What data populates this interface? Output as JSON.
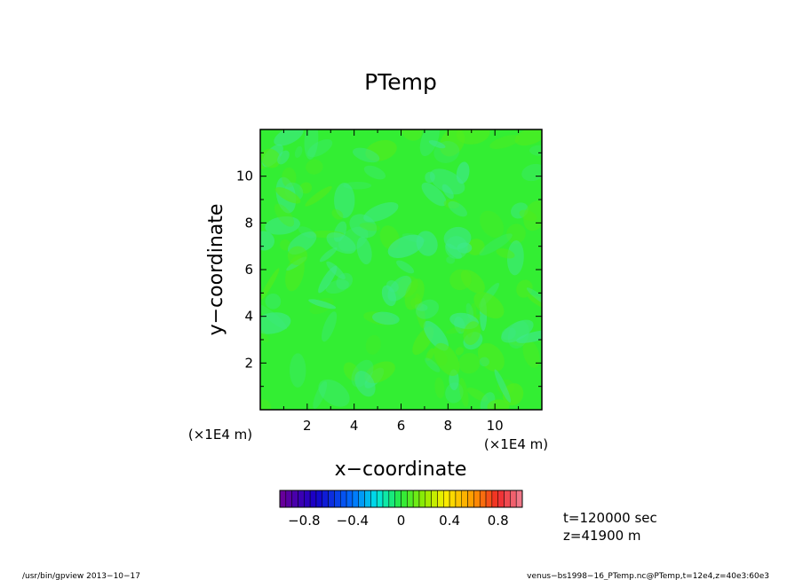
{
  "chart_data": {
    "type": "heatmap",
    "title": "PTemp",
    "xlabel": "x−coordinate",
    "ylabel": "y−coordinate",
    "x_unit": "(×1E4 m)",
    "y_unit": "(×1E4 m)",
    "xlim": [
      0,
      12
    ],
    "ylim": [
      0,
      12
    ],
    "x_ticks": [
      2,
      4,
      6,
      8,
      10
    ],
    "y_ticks": [
      2,
      4,
      6,
      8,
      10
    ],
    "x_tick_labels": [
      "2",
      "4",
      "6",
      "8",
      "10"
    ],
    "y_tick_labels": [
      "2",
      "4",
      "6",
      "8",
      "10"
    ],
    "field_value_range": [
      -0.2,
      0.1
    ],
    "colorbar": {
      "range": [
        -1.0,
        1.0
      ],
      "levels": 40,
      "tick_values": [
        -0.8,
        -0.4,
        0,
        0.4,
        0.8
      ],
      "tick_labels": [
        "−0.8",
        "−0.4",
        "0",
        "0.4",
        "0.8"
      ]
    },
    "annotations": {
      "time": "t=120000 sec",
      "height": "z=41900 m"
    },
    "grid": false,
    "legend": "colorbar-bottom"
  },
  "footer": {
    "left": "/usr/bin/gpview   2013−10−17",
    "right": "venus−bs1998−16_PTemp.nc@PTemp,t=12e4,z=40e3:60e3"
  },
  "colors": {
    "field_base": "#33ee33",
    "field_low": "#3ee88a",
    "field_high": "#52ec1e"
  }
}
